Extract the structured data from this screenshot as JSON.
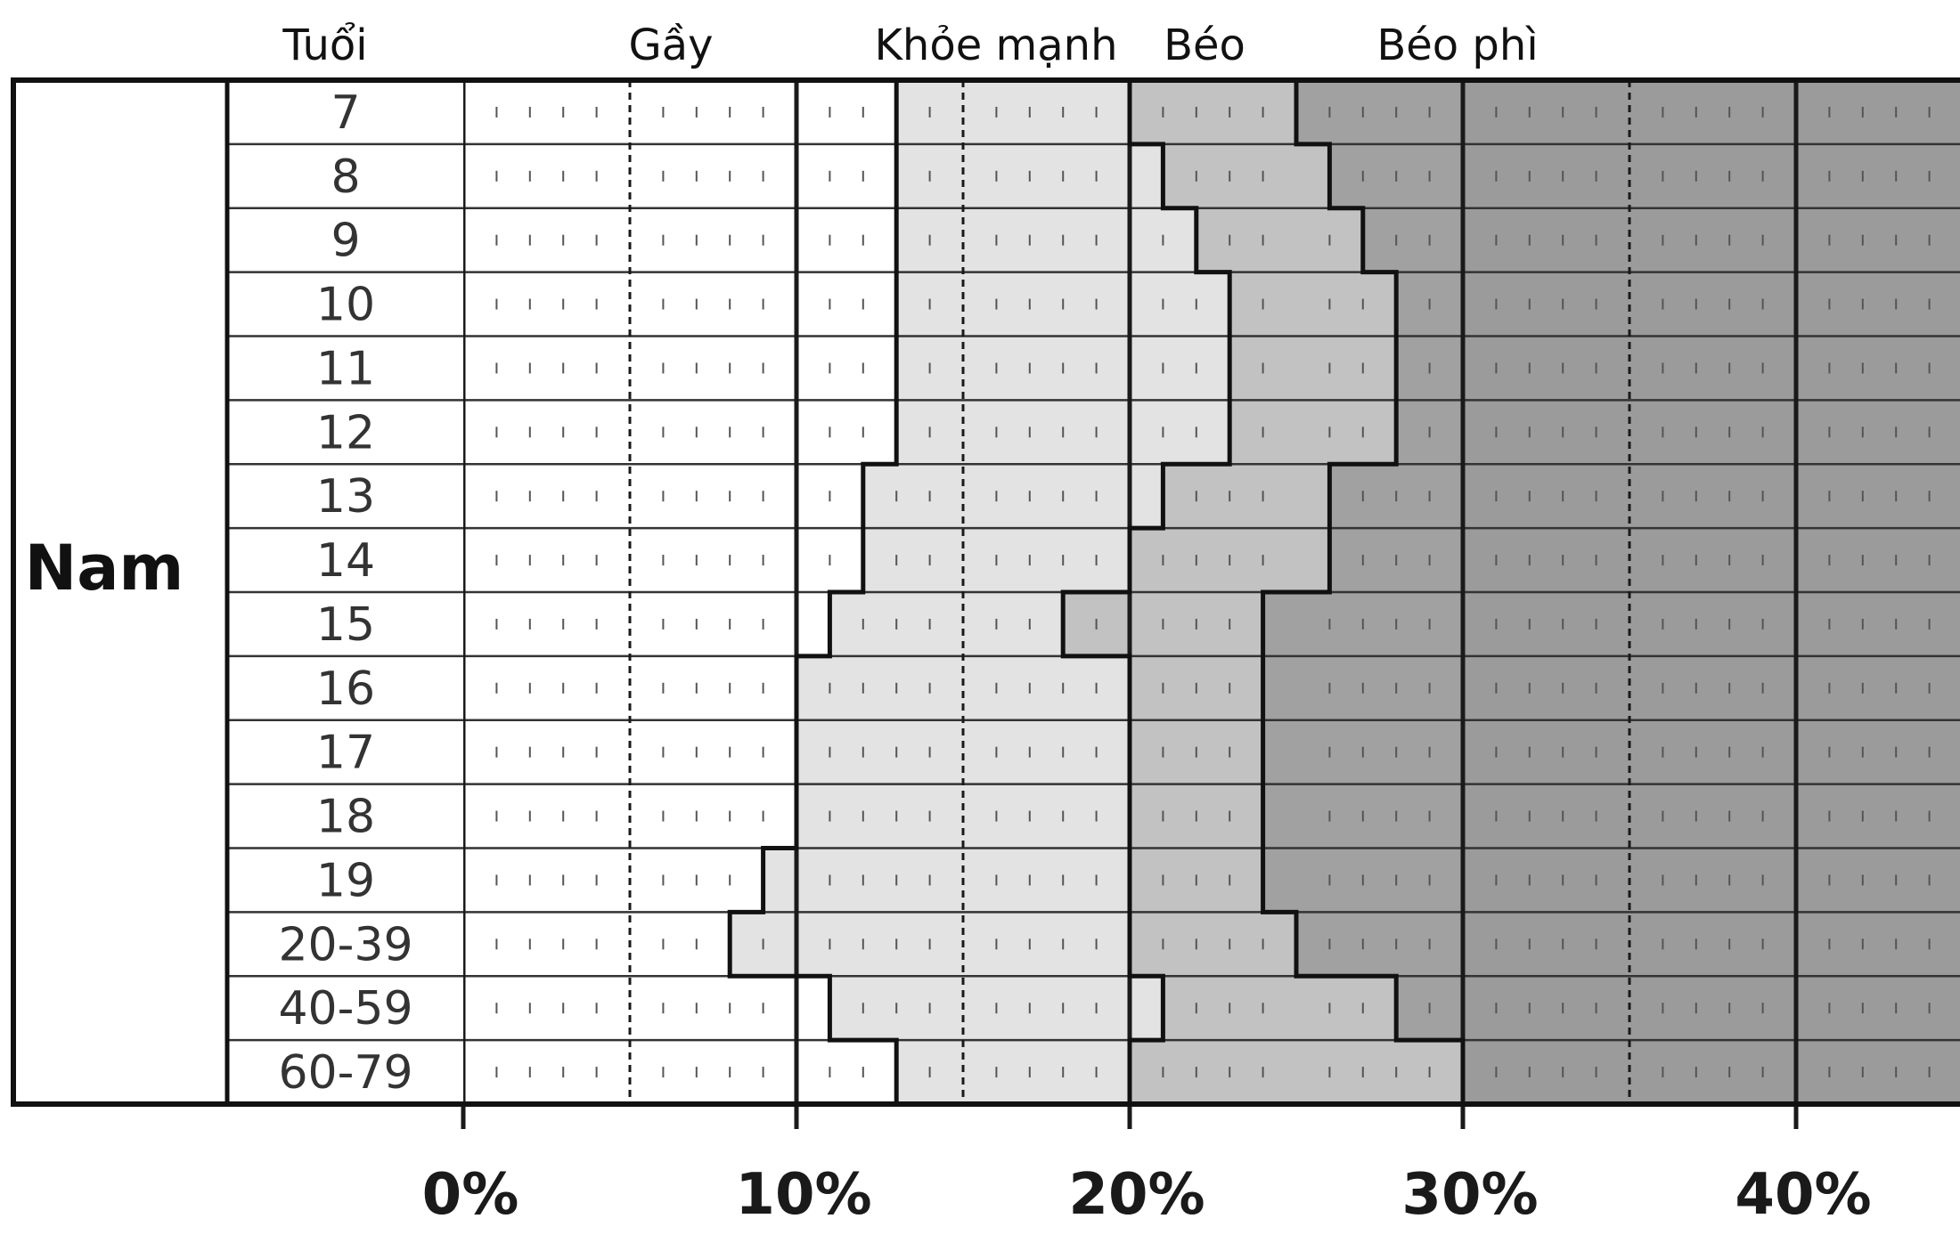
{
  "chart_data": {
    "type": "bar",
    "stacked": true,
    "orientation": "horizontal",
    "xlim": [
      0,
      45
    ],
    "x_ticks": [
      "0%",
      "10%",
      "20%",
      "30%",
      "40%"
    ],
    "x_tick_values": [
      0,
      10,
      20,
      30,
      40
    ],
    "age_header": "Tuổi",
    "group_label": "Nam",
    "categories": [
      "7",
      "8",
      "9",
      "10",
      "11",
      "12",
      "13",
      "14",
      "15",
      "16",
      "17",
      "18",
      "19",
      "20-39",
      "40-59",
      "60-79"
    ],
    "series": [
      {
        "name": "Gầy",
        "values": [
          13,
          13,
          13,
          13,
          13,
          13,
          12,
          12,
          11,
          10,
          10,
          10,
          9,
          8,
          11,
          13
        ]
      },
      {
        "name": "Khỏe mạnh",
        "values": [
          7,
          8,
          9,
          10,
          10,
          10,
          9,
          8,
          7,
          10,
          10,
          10,
          11,
          12,
          10,
          7
        ]
      },
      {
        "name": "Béo",
        "values": [
          5,
          5,
          5,
          5,
          5,
          5,
          5,
          6,
          6,
          4,
          4,
          4,
          4,
          5,
          7,
          10
        ]
      },
      {
        "name": "Béo phì",
        "values": [
          20,
          19,
          18,
          17,
          17,
          17,
          19,
          19,
          21,
          21,
          21,
          21,
          21,
          20,
          17,
          15
        ]
      }
    ],
    "colors": [
      "#ffffff",
      "#e3e3e3",
      "#c2c2c2",
      "#a1a1a1"
    ]
  }
}
